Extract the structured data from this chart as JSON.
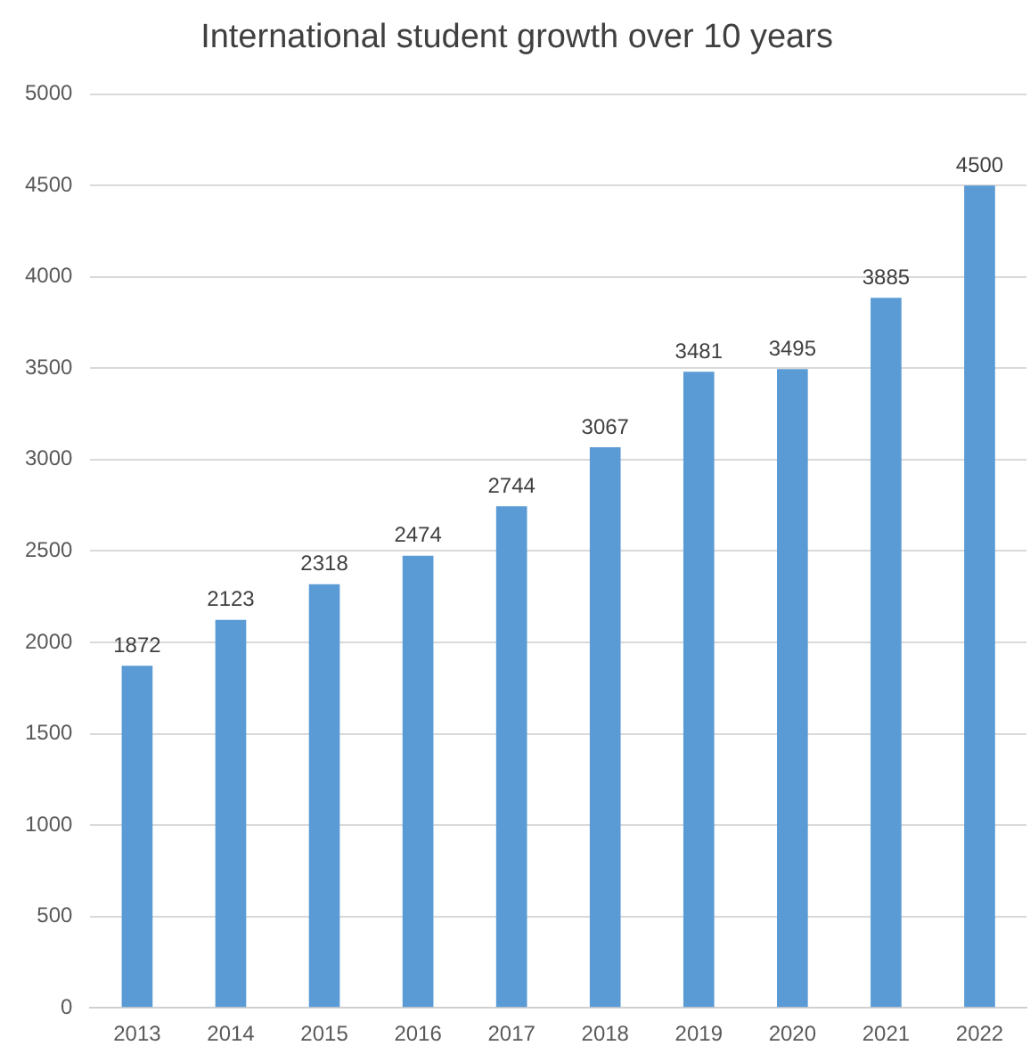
{
  "chart_data": {
    "type": "bar",
    "title": "International student growth over 10 years",
    "categories": [
      "2013",
      "2014",
      "2015",
      "2016",
      "2017",
      "2018",
      "2019",
      "2020",
      "2021",
      "2022"
    ],
    "values": [
      1872,
      2123,
      2318,
      2474,
      2744,
      3067,
      3481,
      3495,
      3885,
      4500
    ],
    "color": "#5b9bd5",
    "ylim": [
      0,
      5000
    ],
    "yticks": [
      0,
      500,
      1000,
      1500,
      2000,
      2500,
      3000,
      3500,
      4000,
      4500,
      5000
    ],
    "grid": "y",
    "data_labels": true,
    "legend": false
  }
}
